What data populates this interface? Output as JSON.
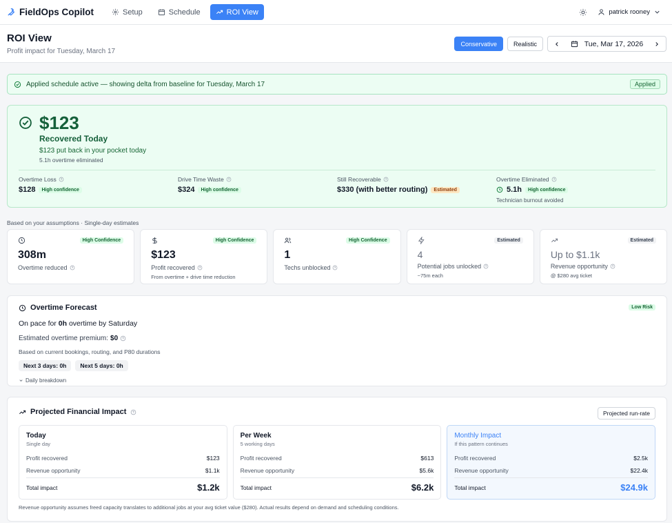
{
  "nav": {
    "brand": "FieldOps Copilot",
    "tabs": [
      {
        "label": "Setup",
        "icon": "gear-icon"
      },
      {
        "label": "Schedule",
        "icon": "calendar-icon"
      },
      {
        "label": "ROI View",
        "icon": "trending-up-icon",
        "active": true
      }
    ],
    "user": "patrick rooney"
  },
  "header": {
    "title": "ROI View",
    "subtitle": "Profit impact for Tuesday, March 17",
    "modes": [
      "Conservative",
      "Realistic"
    ],
    "active_mode": "Conservative",
    "date": "Tue, Mar 17, 2026"
  },
  "banner": {
    "text": "Applied schedule active — showing delta from baseline for Tuesday, March 17",
    "badge": "Applied"
  },
  "hero": {
    "amount": "$123",
    "label": "Recovered Today",
    "sub": "$123 put back in your pocket today",
    "sub2": "5.1h overtime eliminated",
    "stats": [
      {
        "label": "Overtime Loss",
        "value": "$128",
        "tag": "High confidence",
        "tag_type": "green",
        "note": ""
      },
      {
        "label": "Drive Time Waste",
        "value": "$324",
        "tag": "High confidence",
        "tag_type": "green",
        "note": ""
      },
      {
        "label": "Still Recoverable",
        "value": "$330 (with better routing)",
        "tag": "Estimated",
        "tag_type": "amber",
        "note": ""
      },
      {
        "label": "Overtime Eliminated",
        "value": "5.1h",
        "tag": "High confidence",
        "tag_type": "green",
        "note": "Technician burnout avoided"
      }
    ]
  },
  "assumptions": "Based on your assumptions · Single-day estimates",
  "kpis": [
    {
      "icon": "clock-icon",
      "tag": "High Confidence",
      "tag_type": "green",
      "value": "308m",
      "label": "Overtime reduced",
      "note": ""
    },
    {
      "icon": "dollar-icon",
      "tag": "High Confidence",
      "tag_type": "green",
      "value": "$123",
      "label": "Profit recovered",
      "note": "From overtime + drive time reduction"
    },
    {
      "icon": "users-icon",
      "tag": "High Confidence",
      "tag_type": "green",
      "value": "1",
      "label": "Techs unblocked",
      "note": ""
    },
    {
      "icon": "lightning-icon",
      "tag": "Estimated",
      "tag_type": "gray",
      "value": "4",
      "label": "Potential jobs unlocked",
      "note": "~75m each"
    },
    {
      "icon": "trending-up-icon",
      "tag": "Estimated",
      "tag_type": "gray",
      "value": "Up to $1.1k",
      "label": "Revenue opportunity",
      "note": "@ $280 avg ticket"
    }
  ],
  "forecast": {
    "title": "Overtime Forecast",
    "risk": "Low Risk",
    "pace_prefix": "On pace for ",
    "pace_value": "0h",
    "pace_suffix": " overtime by Saturday",
    "premium_label": "Estimated overtime premium: ",
    "premium_value": "$0",
    "basis": "Based on current bookings, routing, and P80 durations",
    "pills": [
      "Next 3 days: 0h",
      "Next 5 days: 0h"
    ],
    "breakdown": "Daily breakdown"
  },
  "projected": {
    "title": "Projected Financial Impact",
    "run_rate": "Projected run-rate",
    "cards": [
      {
        "title": "Today",
        "sub": "Single day",
        "profit_label": "Profit recovered",
        "profit": "$123",
        "rev_label": "Revenue opportunity",
        "rev": "$1.1k",
        "total_label": "Total impact",
        "total": "$1.2k"
      },
      {
        "title": "Per Week",
        "sub": "5 working days",
        "profit_label": "Profit recovered",
        "profit": "$613",
        "rev_label": "Revenue opportunity",
        "rev": "$5.6k",
        "total_label": "Total impact",
        "total": "$6.2k"
      },
      {
        "title": "Monthly Impact",
        "sub": "If this pattern continues",
        "profit_label": "Profit recovered",
        "profit": "$2.5k",
        "rev_label": "Revenue opportunity",
        "rev": "$22.4k",
        "total_label": "Total impact",
        "total": "$24.9k"
      }
    ],
    "footnote": "Revenue opportunity assumes freed capacity translates to additional jobs at your avg ticket value ($280). Actual results depend on demand and scheduling conditions."
  }
}
